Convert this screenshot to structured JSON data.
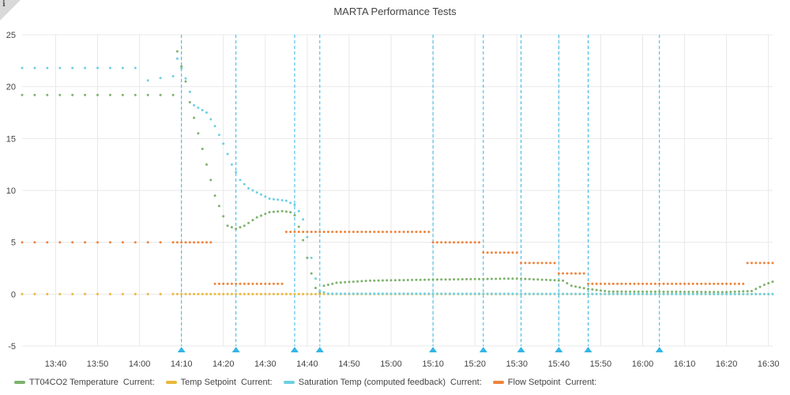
{
  "panel": {
    "info_icon": "i",
    "title": "MARTA Performance Tests"
  },
  "colors": {
    "tt04co2": "#7eb26d",
    "temp_setpoint": "#eab839",
    "saturation": "#6ed0e0",
    "flow_setpoint": "#ef843c",
    "annotation": "#33b5e5",
    "grid": "#e8e8e8"
  },
  "chart_data": {
    "type": "scatter",
    "title": "MARTA Performance Tests",
    "x_unit": "time",
    "x_ticks": [
      "13:40",
      "13:50",
      "14:00",
      "14:10",
      "14:20",
      "14:30",
      "14:40",
      "14:50",
      "15:00",
      "15:10",
      "15:20",
      "15:30",
      "15:40",
      "15:50",
      "16:00",
      "16:10",
      "16:20",
      "16:30"
    ],
    "xlim": [
      "13:32",
      "16:31"
    ],
    "y_ticks": [
      25,
      20,
      15,
      10,
      5,
      0,
      -5
    ],
    "ylim": [
      -5,
      25
    ],
    "grid": true,
    "legend_position": "bottom-left",
    "annotations": [
      "14:10",
      "14:23",
      "14:37",
      "14:43",
      "15:10",
      "15:22",
      "15:31",
      "15:40",
      "15:47",
      "16:04"
    ],
    "series": [
      {
        "name": "TT04CO2 Temperature",
        "current_label": "Current:",
        "color_key": "tt04co2",
        "points": [
          [
            "13:32",
            19.2
          ],
          [
            "14:08",
            19.2
          ],
          [
            "14:09",
            23.4
          ],
          [
            "14:11",
            20.5
          ],
          [
            "14:12",
            18.5
          ],
          [
            "14:14",
            15.5
          ],
          [
            "14:16",
            12.5
          ],
          [
            "14:18",
            9.5
          ],
          [
            "14:20",
            7.5
          ],
          [
            "14:21",
            6.6
          ],
          [
            "14:23",
            6.3
          ],
          [
            "14:25",
            6.6
          ],
          [
            "14:28",
            7.4
          ],
          [
            "14:31",
            7.9
          ],
          [
            "14:34",
            8.0
          ],
          [
            "14:36",
            7.9
          ],
          [
            "14:37",
            7.6
          ],
          [
            "14:38",
            6.5
          ],
          [
            "14:39",
            5.2
          ],
          [
            "14:40",
            3.5
          ],
          [
            "14:41",
            2.0
          ],
          [
            "14:42",
            0.6
          ],
          [
            "14:43",
            0.1
          ],
          [
            "14:44",
            0.8
          ],
          [
            "14:47",
            1.1
          ],
          [
            "14:55",
            1.3
          ],
          [
            "15:10",
            1.4
          ],
          [
            "15:30",
            1.5
          ],
          [
            "15:41",
            1.3
          ],
          [
            "15:43",
            0.8
          ],
          [
            "15:47",
            0.5
          ],
          [
            "15:52",
            0.25
          ],
          [
            "16:20",
            0.2
          ],
          [
            "16:26",
            0.3
          ],
          [
            "16:29",
            0.9
          ],
          [
            "16:31",
            1.2
          ]
        ]
      },
      {
        "name": "Temp Setpoint",
        "current_label": "Current:",
        "color_key": "temp_setpoint",
        "points": [
          [
            "13:32",
            0
          ],
          [
            "16:31",
            0
          ]
        ]
      },
      {
        "name": "Saturation Temp (computed feedback)",
        "current_label": "Current:",
        "color_key": "saturation",
        "points": [
          [
            "13:32",
            21.8
          ],
          [
            "14:00",
            21.8
          ],
          [
            "14:02",
            20.6
          ],
          [
            "14:06",
            20.9
          ],
          [
            "14:08",
            21.0
          ],
          [
            "14:09",
            22.7
          ],
          [
            "14:11",
            20.8
          ],
          [
            "14:12",
            19.5
          ],
          [
            "14:13",
            18.2
          ],
          [
            "14:16",
            17.5
          ],
          [
            "14:18",
            16.2
          ],
          [
            "14:20",
            14.5
          ],
          [
            "14:22",
            12.5
          ],
          [
            "14:24",
            11.0
          ],
          [
            "14:26",
            10.2
          ],
          [
            "14:29",
            9.6
          ],
          [
            "14:31",
            9.2
          ],
          [
            "14:35",
            9.0
          ],
          [
            "14:37",
            8.6
          ],
          [
            "14:38",
            8.0
          ],
          [
            "14:39",
            7.2
          ],
          [
            "14:40",
            5.5
          ],
          [
            "14:41",
            3.5
          ],
          [
            "14:42",
            1.5
          ],
          [
            "14:43",
            0.3
          ],
          [
            "14:45",
            0.05
          ],
          [
            "16:31",
            0.0
          ]
        ]
      },
      {
        "name": "Flow Setpoint",
        "current_label": "Current:",
        "color_key": "flow_setpoint",
        "points": [
          [
            "13:32",
            5
          ],
          [
            "14:10",
            5
          ],
          [
            "14:11",
            5
          ],
          [
            "14:17",
            5
          ],
          [
            "14:18",
            1
          ],
          [
            "14:34",
            1
          ],
          [
            "14:35",
            6
          ],
          [
            "15:09",
            6
          ],
          [
            "15:10",
            5
          ],
          [
            "15:21",
            5
          ],
          [
            "15:22",
            4
          ],
          [
            "15:30",
            4
          ],
          [
            "15:31",
            3
          ],
          [
            "15:39",
            3
          ],
          [
            "15:40",
            2
          ],
          [
            "15:46",
            2
          ],
          [
            "15:47",
            1
          ],
          [
            "16:24",
            1
          ],
          [
            "16:25",
            3
          ],
          [
            "16:31",
            3
          ]
        ]
      }
    ]
  }
}
